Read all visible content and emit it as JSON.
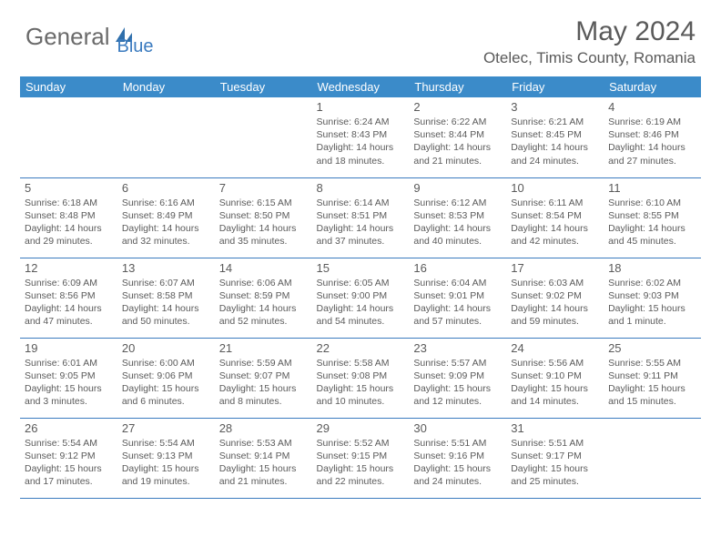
{
  "logo": {
    "part1": "General",
    "part2": "Blue"
  },
  "title": "May 2024",
  "location": "Otelec, Timis County, Romania",
  "colors": {
    "header_bg": "#3b8bc9",
    "border": "#3b7bbf",
    "text": "#5a5a5a",
    "logo_gray": "#6a6a6a",
    "logo_blue": "#3b7bbf",
    "background": "#ffffff"
  },
  "days_of_week": [
    "Sunday",
    "Monday",
    "Tuesday",
    "Wednesday",
    "Thursday",
    "Friday",
    "Saturday"
  ],
  "weeks": [
    [
      {
        "n": "",
        "sr": "",
        "ss": "",
        "dl": ""
      },
      {
        "n": "",
        "sr": "",
        "ss": "",
        "dl": ""
      },
      {
        "n": "",
        "sr": "",
        "ss": "",
        "dl": ""
      },
      {
        "n": "1",
        "sr": "Sunrise: 6:24 AM",
        "ss": "Sunset: 8:43 PM",
        "dl": "Daylight: 14 hours and 18 minutes."
      },
      {
        "n": "2",
        "sr": "Sunrise: 6:22 AM",
        "ss": "Sunset: 8:44 PM",
        "dl": "Daylight: 14 hours and 21 minutes."
      },
      {
        "n": "3",
        "sr": "Sunrise: 6:21 AM",
        "ss": "Sunset: 8:45 PM",
        "dl": "Daylight: 14 hours and 24 minutes."
      },
      {
        "n": "4",
        "sr": "Sunrise: 6:19 AM",
        "ss": "Sunset: 8:46 PM",
        "dl": "Daylight: 14 hours and 27 minutes."
      }
    ],
    [
      {
        "n": "5",
        "sr": "Sunrise: 6:18 AM",
        "ss": "Sunset: 8:48 PM",
        "dl": "Daylight: 14 hours and 29 minutes."
      },
      {
        "n": "6",
        "sr": "Sunrise: 6:16 AM",
        "ss": "Sunset: 8:49 PM",
        "dl": "Daylight: 14 hours and 32 minutes."
      },
      {
        "n": "7",
        "sr": "Sunrise: 6:15 AM",
        "ss": "Sunset: 8:50 PM",
        "dl": "Daylight: 14 hours and 35 minutes."
      },
      {
        "n": "8",
        "sr": "Sunrise: 6:14 AM",
        "ss": "Sunset: 8:51 PM",
        "dl": "Daylight: 14 hours and 37 minutes."
      },
      {
        "n": "9",
        "sr": "Sunrise: 6:12 AM",
        "ss": "Sunset: 8:53 PM",
        "dl": "Daylight: 14 hours and 40 minutes."
      },
      {
        "n": "10",
        "sr": "Sunrise: 6:11 AM",
        "ss": "Sunset: 8:54 PM",
        "dl": "Daylight: 14 hours and 42 minutes."
      },
      {
        "n": "11",
        "sr": "Sunrise: 6:10 AM",
        "ss": "Sunset: 8:55 PM",
        "dl": "Daylight: 14 hours and 45 minutes."
      }
    ],
    [
      {
        "n": "12",
        "sr": "Sunrise: 6:09 AM",
        "ss": "Sunset: 8:56 PM",
        "dl": "Daylight: 14 hours and 47 minutes."
      },
      {
        "n": "13",
        "sr": "Sunrise: 6:07 AM",
        "ss": "Sunset: 8:58 PM",
        "dl": "Daylight: 14 hours and 50 minutes."
      },
      {
        "n": "14",
        "sr": "Sunrise: 6:06 AM",
        "ss": "Sunset: 8:59 PM",
        "dl": "Daylight: 14 hours and 52 minutes."
      },
      {
        "n": "15",
        "sr": "Sunrise: 6:05 AM",
        "ss": "Sunset: 9:00 PM",
        "dl": "Daylight: 14 hours and 54 minutes."
      },
      {
        "n": "16",
        "sr": "Sunrise: 6:04 AM",
        "ss": "Sunset: 9:01 PM",
        "dl": "Daylight: 14 hours and 57 minutes."
      },
      {
        "n": "17",
        "sr": "Sunrise: 6:03 AM",
        "ss": "Sunset: 9:02 PM",
        "dl": "Daylight: 14 hours and 59 minutes."
      },
      {
        "n": "18",
        "sr": "Sunrise: 6:02 AM",
        "ss": "Sunset: 9:03 PM",
        "dl": "Daylight: 15 hours and 1 minute."
      }
    ],
    [
      {
        "n": "19",
        "sr": "Sunrise: 6:01 AM",
        "ss": "Sunset: 9:05 PM",
        "dl": "Daylight: 15 hours and 3 minutes."
      },
      {
        "n": "20",
        "sr": "Sunrise: 6:00 AM",
        "ss": "Sunset: 9:06 PM",
        "dl": "Daylight: 15 hours and 6 minutes."
      },
      {
        "n": "21",
        "sr": "Sunrise: 5:59 AM",
        "ss": "Sunset: 9:07 PM",
        "dl": "Daylight: 15 hours and 8 minutes."
      },
      {
        "n": "22",
        "sr": "Sunrise: 5:58 AM",
        "ss": "Sunset: 9:08 PM",
        "dl": "Daylight: 15 hours and 10 minutes."
      },
      {
        "n": "23",
        "sr": "Sunrise: 5:57 AM",
        "ss": "Sunset: 9:09 PM",
        "dl": "Daylight: 15 hours and 12 minutes."
      },
      {
        "n": "24",
        "sr": "Sunrise: 5:56 AM",
        "ss": "Sunset: 9:10 PM",
        "dl": "Daylight: 15 hours and 14 minutes."
      },
      {
        "n": "25",
        "sr": "Sunrise: 5:55 AM",
        "ss": "Sunset: 9:11 PM",
        "dl": "Daylight: 15 hours and 15 minutes."
      }
    ],
    [
      {
        "n": "26",
        "sr": "Sunrise: 5:54 AM",
        "ss": "Sunset: 9:12 PM",
        "dl": "Daylight: 15 hours and 17 minutes."
      },
      {
        "n": "27",
        "sr": "Sunrise: 5:54 AM",
        "ss": "Sunset: 9:13 PM",
        "dl": "Daylight: 15 hours and 19 minutes."
      },
      {
        "n": "28",
        "sr": "Sunrise: 5:53 AM",
        "ss": "Sunset: 9:14 PM",
        "dl": "Daylight: 15 hours and 21 minutes."
      },
      {
        "n": "29",
        "sr": "Sunrise: 5:52 AM",
        "ss": "Sunset: 9:15 PM",
        "dl": "Daylight: 15 hours and 22 minutes."
      },
      {
        "n": "30",
        "sr": "Sunrise: 5:51 AM",
        "ss": "Sunset: 9:16 PM",
        "dl": "Daylight: 15 hours and 24 minutes."
      },
      {
        "n": "31",
        "sr": "Sunrise: 5:51 AM",
        "ss": "Sunset: 9:17 PM",
        "dl": "Daylight: 15 hours and 25 minutes."
      },
      {
        "n": "",
        "sr": "",
        "ss": "",
        "dl": ""
      }
    ]
  ]
}
